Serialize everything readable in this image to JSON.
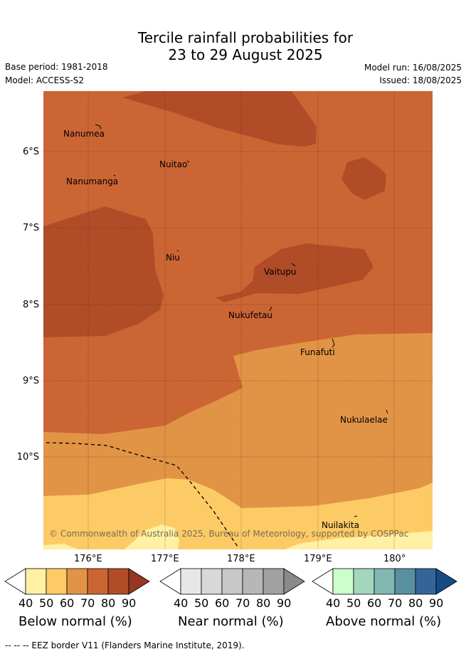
{
  "header": {
    "title_line1": "Tercile rainfall probabilities for",
    "title_line2": "23 to 29 August 2025",
    "base_period": "Base period: 1981-2018",
    "model": "Model: ACCESS-S2",
    "model_run": "Model run: 16/08/2025",
    "issued": "Issued: 18/08/2025"
  },
  "map": {
    "lat_labels": [
      "6°S",
      "7°S",
      "8°S",
      "9°S",
      "10°S"
    ],
    "lon_labels": [
      "176°E",
      "177°E",
      "178°E",
      "179°E",
      "180°"
    ],
    "places": [
      {
        "name": "Nanumea"
      },
      {
        "name": "Nuitao"
      },
      {
        "name": "Nanumanga"
      },
      {
        "name": "Niu"
      },
      {
        "name": "Vaitupu"
      },
      {
        "name": "Nukufetau"
      },
      {
        "name": "Funafuti"
      },
      {
        "name": "Nukulaelae"
      },
      {
        "name": "Nuilakita"
      }
    ],
    "copyright": "© Commonwealth of Australia 2025, Bureau of Meteorology, supported by COSPPac",
    "colors": {
      "below_40": "#fff0a3",
      "below_50": "#fdcb65",
      "below_60": "#e29446",
      "below_70": "#cc6534",
      "below_80": "#b04c28",
      "below_90": "#973622",
      "near_40": "#e7e7e7",
      "near_50": "#d8d8d8",
      "near_60": "#c8c8c8",
      "near_70": "#b7b7b7",
      "near_80": "#a1a1a1",
      "near_90": "#8a8a8a",
      "above_40": "#ccffcc",
      "above_50": "#a4d8be",
      "above_60": "#82b7b3",
      "above_70": "#5890a2",
      "above_80": "#346599",
      "above_90": "#154b86"
    }
  },
  "colorbars": [
    {
      "title": "Below normal (%)",
      "ticks": [
        "40",
        "50",
        "60",
        "70",
        "80",
        "90"
      ]
    },
    {
      "title": "Near normal (%)",
      "ticks": [
        "40",
        "50",
        "60",
        "70",
        "80",
        "90"
      ]
    },
    {
      "title": "Above normal (%)",
      "ticks": [
        "40",
        "50",
        "60",
        "70",
        "80",
        "90"
      ]
    }
  ],
  "footer": {
    "eez_legend": "-- -- -- EEZ border V11 (Flanders Marine Institute, 2019)."
  }
}
